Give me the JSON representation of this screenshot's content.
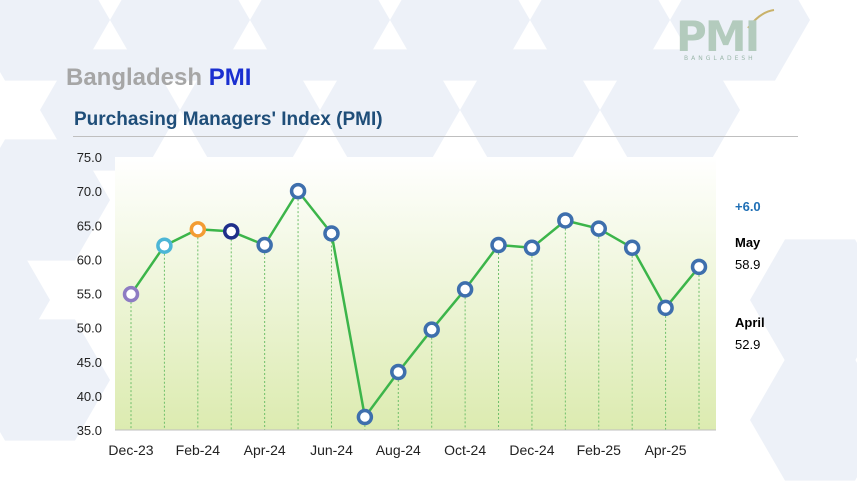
{
  "header": {
    "title_gray": "Bangladesh",
    "title_blue": "PMI",
    "logo_text": "PMI",
    "logo_sub": "BANGLADESH"
  },
  "chart_title": "Purchasing Managers' Index (PMI)",
  "side_labels": {
    "delta": "+6.0",
    "current_month": "May",
    "current_value": "58.9",
    "prev_month": "April",
    "prev_value": "52.9"
  },
  "colors": {
    "line": "#3cb54a",
    "marker_default": "#3e6fad",
    "marker_dec23": "#8e7cc3",
    "marker_jan24": "#4cb6d6",
    "marker_feb24": "#f39c33",
    "marker_mar24": "#1f2f8a",
    "area_top": "#ffffff",
    "area_bottom": "#dcebb0",
    "hexagon": "#edf1f8"
  },
  "chart_data": {
    "type": "line",
    "x": [
      "Dec-23",
      "Jan-24",
      "Feb-24",
      "Mar-24",
      "Apr-24",
      "May-24",
      "Jun-24",
      "Jul-24",
      "Aug-24",
      "Sep-24",
      "Oct-24",
      "Nov-24",
      "Dec-24",
      "Jan-25",
      "Feb-25",
      "Mar-25",
      "Apr-25",
      "May-25"
    ],
    "values": [
      54.9,
      62.0,
      64.4,
      64.1,
      62.1,
      70.0,
      63.8,
      36.9,
      43.5,
      49.7,
      55.6,
      62.1,
      61.7,
      65.7,
      64.5,
      61.7,
      52.9,
      58.9
    ],
    "tick_labels": [
      "Dec-23",
      "Feb-24",
      "Apr-24",
      "Jun-24",
      "Aug-24",
      "Oct-24",
      "Dec-24",
      "Feb-25",
      "Apr-25"
    ],
    "yticks": [
      "75.0",
      "70.0",
      "65.0",
      "60.0",
      "55.0",
      "50.0",
      "45.0",
      "40.0",
      "35.0"
    ],
    "ylim": [
      35,
      75
    ],
    "grid": "vertical dashed drop lines"
  }
}
